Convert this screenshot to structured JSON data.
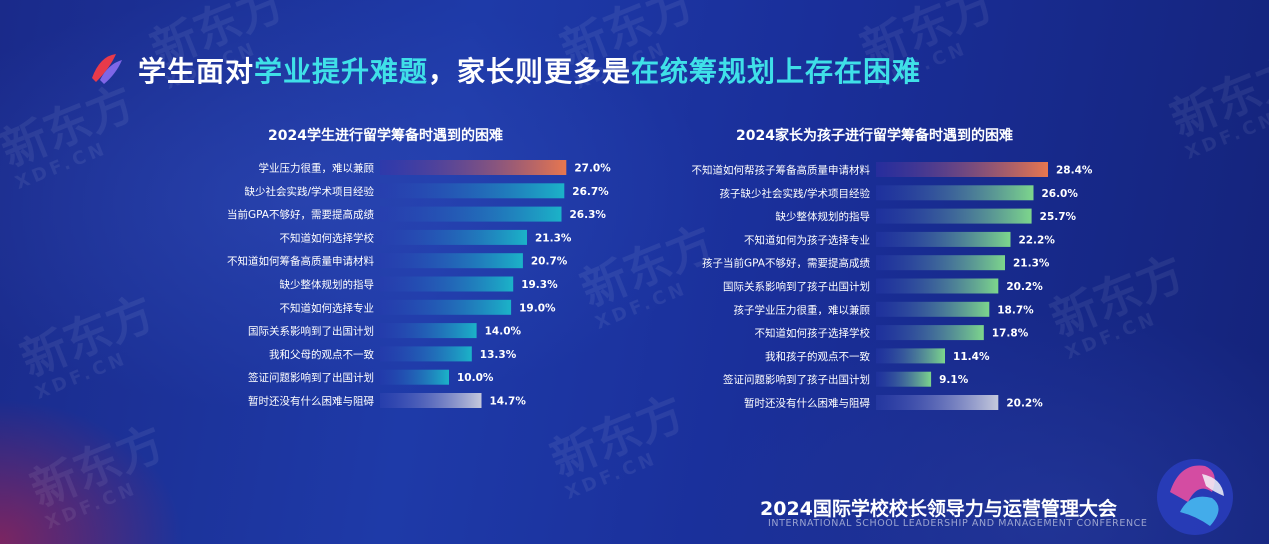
{
  "headline": {
    "part1": "学生面对",
    "part2": "学业提升难题",
    "part3": "，家长则更多是",
    "part4": "在统筹规划上存在困难"
  },
  "watermark": {
    "brand": "新东方",
    "domain": "XDF.CN"
  },
  "footer": {
    "title": "2024国际学校校长领导力与运营管理大会",
    "subtitle": "INTERNATIONAL SCHOOL LEADERSHIP AND MANAGEMENT CONFERENCE"
  },
  "colors": {
    "highlight": "#3fe0e8",
    "top_bar": "#e8774f",
    "student_bar": "#1bb3c8",
    "parent_bar": "#7dd68c",
    "last_bar": "#c5c9dc"
  },
  "chart_data": [
    {
      "type": "bar",
      "orientation": "horizontal",
      "title": "2024学生进行留学筹备时遇到的困难",
      "categories": [
        "学业压力很重，难以兼顾",
        "缺少社会实践/学术项目经验",
        "当前GPA不够好，需要提高成绩",
        "不知道如何选择学校",
        "不知道如何筹备高质量申请材料",
        "缺少整体规划的指导",
        "不知道如何选择专业",
        "国际关系影响到了出国计划",
        "我和父母的观点不一致",
        "签证问题影响到了出国计划",
        "暂时还没有什么困难与阻碍"
      ],
      "values": [
        27.0,
        26.7,
        26.3,
        21.3,
        20.7,
        19.3,
        19.0,
        14.0,
        13.3,
        10.0,
        14.7
      ],
      "value_labels": [
        "27.0%",
        "26.7%",
        "26.3%",
        "21.3%",
        "20.7%",
        "19.3%",
        "19.0%",
        "14.0%",
        "13.3%",
        "10.0%",
        "14.7%"
      ],
      "xlim": [
        0,
        28.4
      ]
    },
    {
      "type": "bar",
      "orientation": "horizontal",
      "title": "2024家长为孩子进行留学筹备时遇到的困难",
      "categories": [
        "不知道如何帮孩子筹备高质量申请材料",
        "孩子缺少社会实践/学术项目经验",
        "缺少整体规划的指导",
        "不知道如何为孩子选择专业",
        "孩子当前GPA不够好，需要提高成绩",
        "国际关系影响到了孩子出国计划",
        "孩子学业压力很重，难以兼顾",
        "不知道如何孩子选择学校",
        "我和孩子的观点不一致",
        "签证问题影响到了孩子出国计划",
        "暂时还没有什么困难与阻碍"
      ],
      "values": [
        28.4,
        26.0,
        25.7,
        22.2,
        21.3,
        20.2,
        18.7,
        17.8,
        11.4,
        9.1,
        20.2
      ],
      "value_labels": [
        "28.4%",
        "26.0%",
        "25.7%",
        "22.2%",
        "21.3%",
        "20.2%",
        "18.7%",
        "17.8%",
        "11.4%",
        "9.1%",
        "20.2%"
      ],
      "xlim": [
        0,
        28.4
      ]
    }
  ]
}
